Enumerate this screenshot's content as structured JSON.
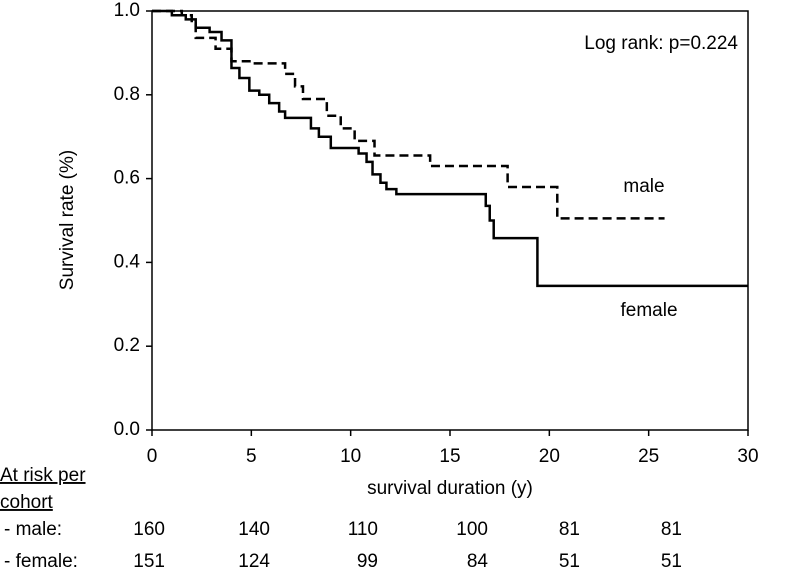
{
  "chart_data": {
    "type": "step",
    "ylabel": "Survival rate (%)",
    "xlabel": "survival duration (y)",
    "xlim": [
      0,
      30
    ],
    "xticks": [
      0,
      5,
      10,
      15,
      20,
      25,
      30
    ],
    "ylim": [
      0,
      1
    ],
    "yticks": [
      {
        "value": 0,
        "label": "0.0"
      },
      {
        "value": 0.2,
        "label": "0.2"
      },
      {
        "value": 0.4,
        "label": "0.4"
      },
      {
        "value": 0.6,
        "label": "0.6"
      },
      {
        "value": 0.8,
        "label": "0.8"
      },
      {
        "value": 1,
        "label": "1.0"
      }
    ],
    "annotations": [
      "Log rank: p=0.224"
    ],
    "series": [
      {
        "name": "male",
        "color": "#000",
        "dash": true,
        "x": [
          0,
          1.5,
          2.0,
          2.2,
          3.2,
          4.0,
          5.0,
          6.7,
          7.2,
          7.6,
          8.8,
          9.5,
          10.2,
          11.2,
          14.0,
          17.9,
          20.4,
          25.8
        ],
        "values": [
          1.0,
          0.99,
          0.97,
          0.936,
          0.91,
          0.88,
          0.875,
          0.85,
          0.82,
          0.79,
          0.75,
          0.72,
          0.69,
          0.655,
          0.63,
          0.58,
          0.505,
          0.505
        ]
      },
      {
        "name": "female",
        "color": "#000",
        "dash": false,
        "x": [
          0,
          1.0,
          1.7,
          2.2,
          2.9,
          3.5,
          4.0,
          4.4,
          4.9,
          5.4,
          5.9,
          6.4,
          6.7,
          8.0,
          8.4,
          9.0,
          10.4,
          10.8,
          11.1,
          11.5,
          11.8,
          12.3,
          16.8,
          17.0,
          17.2,
          19.4,
          30
        ],
        "values": [
          1.0,
          0.99,
          0.98,
          0.96,
          0.95,
          0.93,
          0.864,
          0.84,
          0.81,
          0.8,
          0.78,
          0.76,
          0.745,
          0.72,
          0.7,
          0.673,
          0.66,
          0.64,
          0.61,
          0.59,
          0.575,
          0.563,
          0.535,
          0.5,
          0.458,
          0.344,
          0.344
        ]
      }
    ],
    "at_risk": {
      "title": "At risk per cohort",
      "rows": [
        {
          "label": "- male:",
          "values": [
            160,
            140,
            110,
            100,
            81,
            81
          ]
        },
        {
          "label": "- female:",
          "values": [
            151,
            124,
            99,
            84,
            51,
            51
          ]
        }
      ]
    }
  }
}
